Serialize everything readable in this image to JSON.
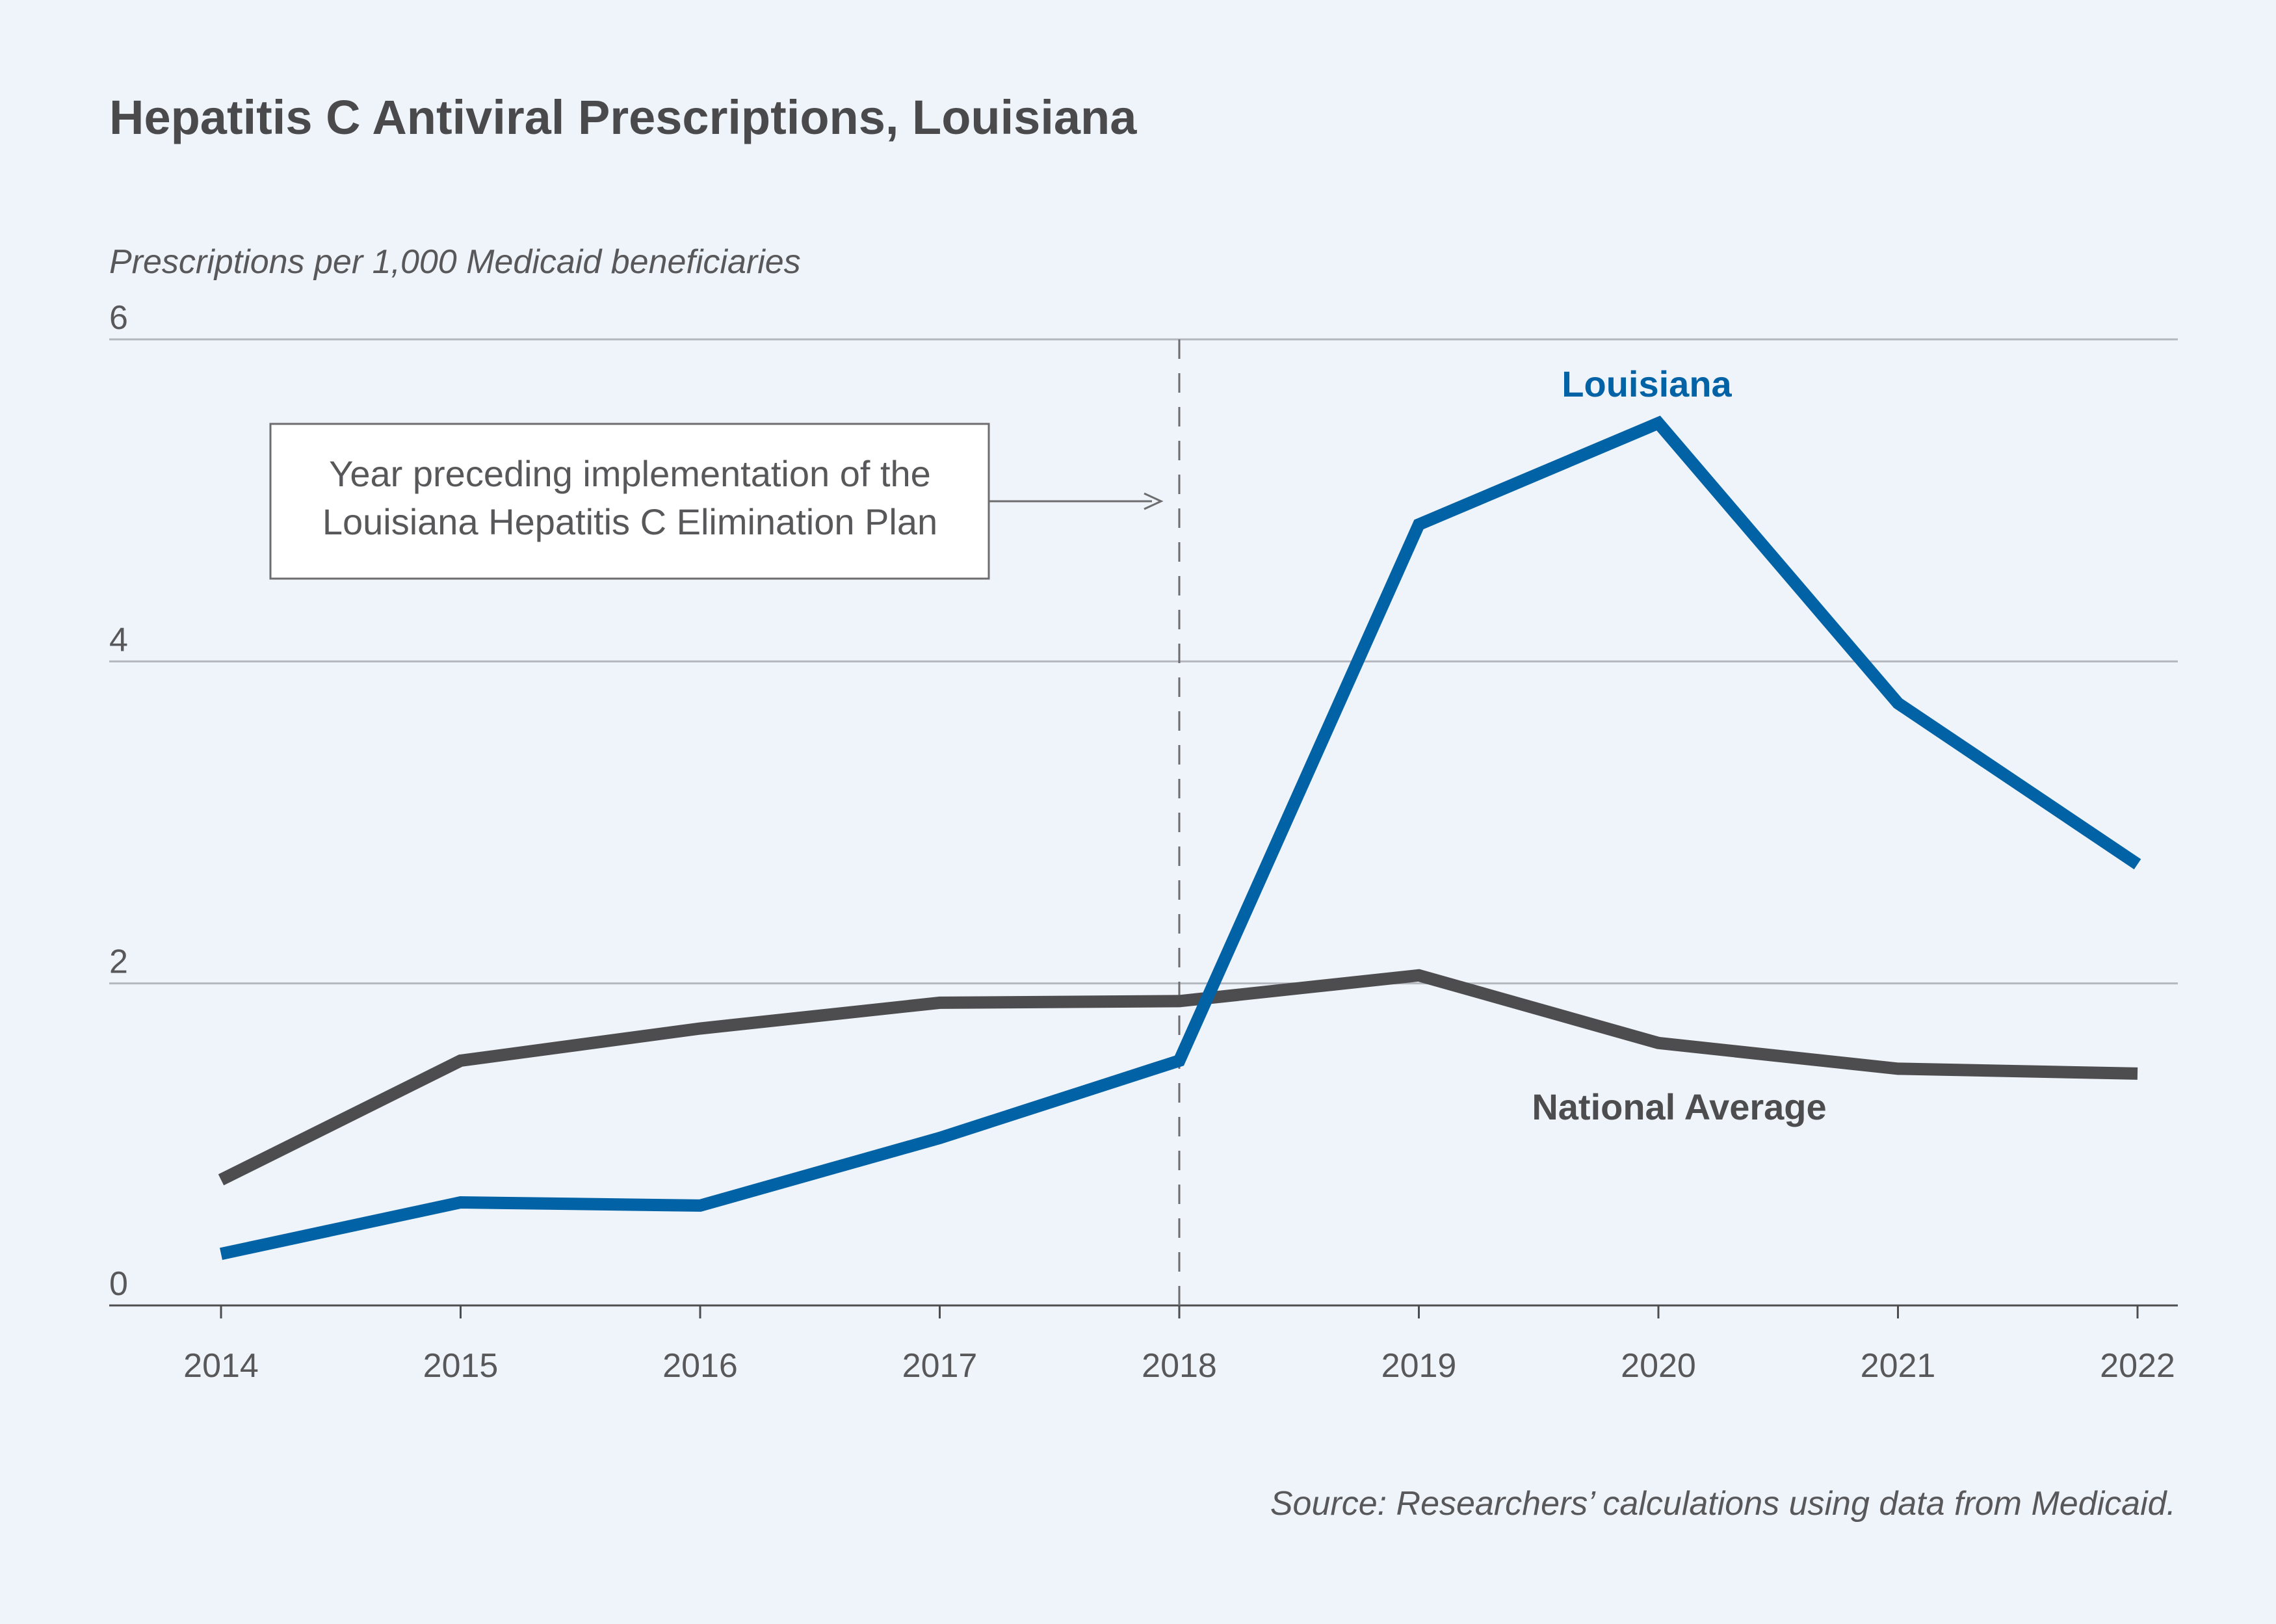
{
  "chart_data": {
    "type": "line",
    "title": "Hepatitis C Antiviral Prescriptions, Louisiana",
    "ylabel": "Prescriptions per 1,000 Medicaid beneficiaries",
    "xlabel": "",
    "x": [
      2014,
      2015,
      2016,
      2017,
      2018,
      2019,
      2020,
      2021,
      2022
    ],
    "x_tick_labels": [
      "2014",
      "2015",
      "2016",
      "2017",
      "2018",
      "2019",
      "2020",
      "2021",
      "2022"
    ],
    "ylim": [
      0,
      6
    ],
    "y_ticks": [
      0,
      2,
      4,
      6
    ],
    "y_tick_labels": [
      "0",
      "2",
      "4",
      "6"
    ],
    "grid": "horizontal",
    "series": [
      {
        "name": "Louisiana",
        "color": "#0262a6",
        "values": [
          0.32,
          0.64,
          0.62,
          1.04,
          1.52,
          4.85,
          5.48,
          3.74,
          2.74
        ]
      },
      {
        "name": "National Average",
        "color": "#4d4d4f",
        "values": [
          0.78,
          1.52,
          1.72,
          1.88,
          1.89,
          2.05,
          1.63,
          1.47,
          1.44
        ]
      }
    ],
    "reference_line": {
      "x": 2018,
      "style": "dashed"
    },
    "annotation": {
      "lines": [
        "Year preceding implementation of the",
        "Louisiana Hepatitis C Elimination Plan"
      ],
      "points_to_x": 2018
    },
    "source": "Source: Researchers’ calculations using data from Medicaid."
  }
}
